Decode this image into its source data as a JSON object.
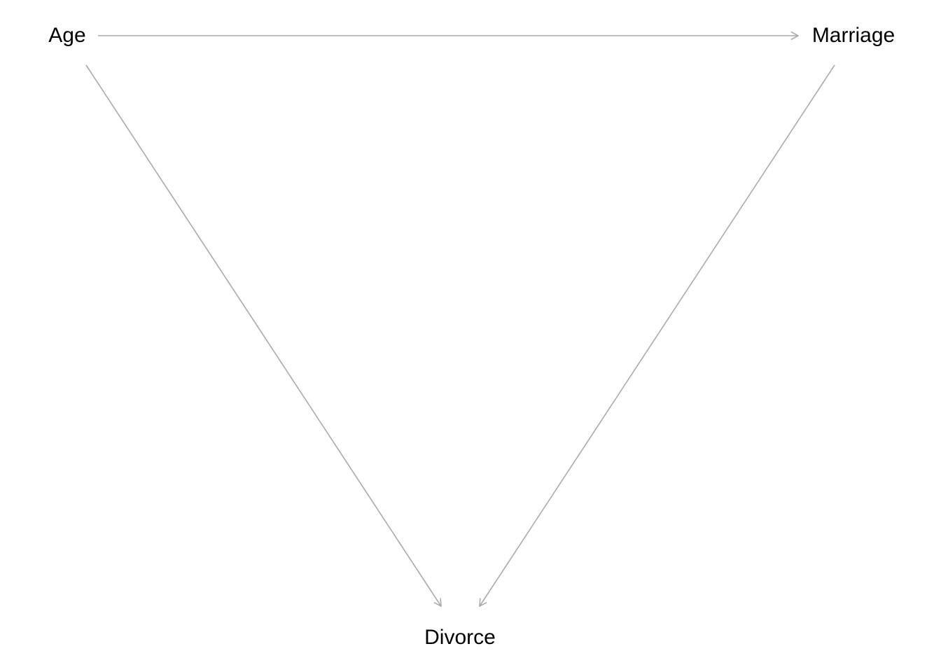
{
  "diagram": {
    "type": "directed-acyclic-graph",
    "edge_color": "#aaaaaa",
    "label_color": "#000000",
    "nodes": [
      {
        "id": "age",
        "label": "Age"
      },
      {
        "id": "marriage",
        "label": "Marriage"
      },
      {
        "id": "divorce",
        "label": "Divorce"
      }
    ],
    "edges": [
      {
        "from": "age",
        "to": "marriage"
      },
      {
        "from": "age",
        "to": "divorce"
      },
      {
        "from": "marriage",
        "to": "divorce"
      }
    ]
  }
}
